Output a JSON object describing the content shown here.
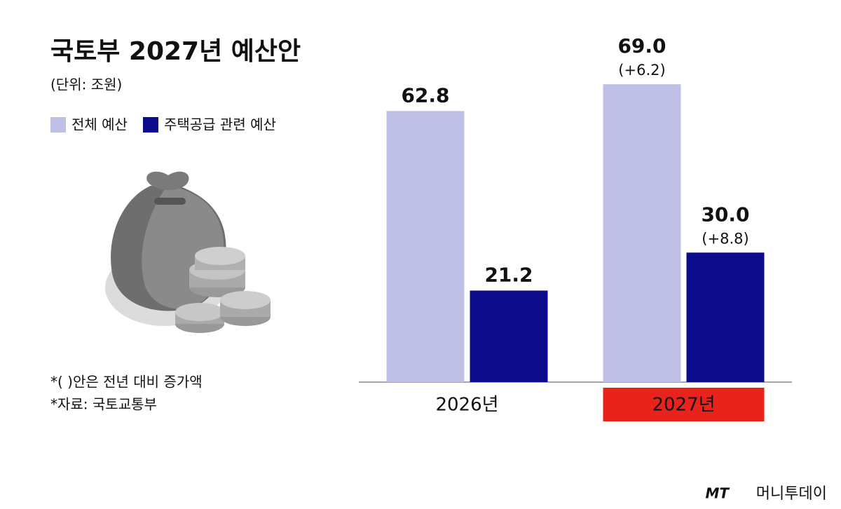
{
  "chart_data": {
    "type": "bar",
    "title": "국토부 2027년 예산안",
    "subtitle": "(단위: 조원)",
    "categories": [
      "2026년",
      "2027년"
    ],
    "series": [
      {
        "name": "전체 예산",
        "color": "#c0c0e6",
        "values": [
          62.8,
          69.0
        ],
        "value_labels": [
          "62.8",
          "69.0"
        ],
        "change_labels": [
          null,
          "(+6.2)"
        ]
      },
      {
        "name": "주택공급 관련 예산",
        "color": "#0b0b8c",
        "values": [
          21.2,
          30.0
        ],
        "value_labels": [
          "21.2",
          "30.0"
        ],
        "change_labels": [
          null,
          "(+8.8)"
        ]
      }
    ],
    "ylim": [
      0,
      70
    ],
    "highlight_index": 1,
    "highlight_color": "#e8231b",
    "notes": [
      "*( )안은 전년 대비 증가액",
      "*자료: 국토교통부"
    ]
  },
  "watermark": {
    "logo": "MT",
    "name": "머니투데이"
  }
}
